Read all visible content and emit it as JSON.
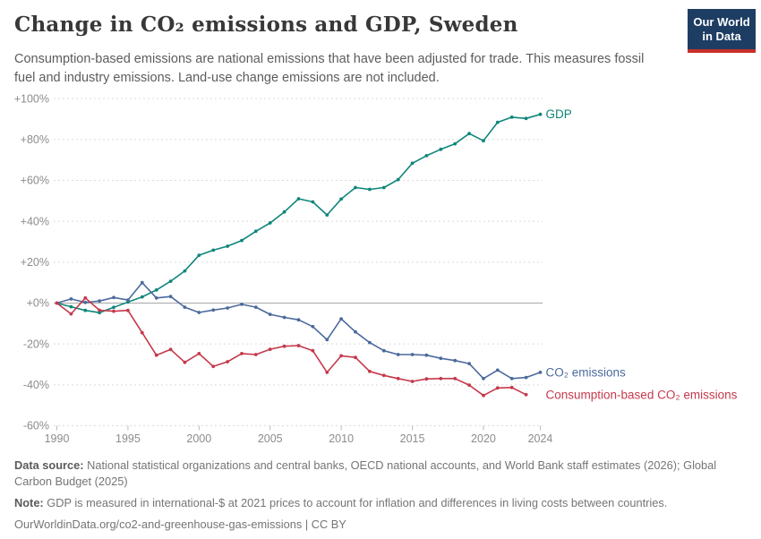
{
  "header": {
    "title": "Change in CO₂ emissions and GDP, Sweden",
    "logo": {
      "line1": "Our World",
      "line2": "in Data"
    }
  },
  "subtitle": "Consumption-based emissions are national emissions that have been adjusted for trade. This measures fossil fuel and industry emissions. Land-use change emissions are not included.",
  "colors": {
    "gdp": "#0F867B",
    "co2": "#4C6A9C",
    "consumption_co2": "#C5394B",
    "gridline": "#DBDBDB",
    "zero_line": "#A8A8A8",
    "tick_text": "#8C8C8C",
    "logo_navy": "#1D3D63",
    "logo_red": "#C7302B"
  },
  "chart_data": {
    "type": "line",
    "title": "Change in CO₂ emissions and GDP, Sweden",
    "x_start": 1990,
    "x_end": 2024,
    "xticks": [
      1990,
      1995,
      2000,
      2005,
      2010,
      2015,
      2020,
      2024
    ],
    "xtick_labels": [
      "1990",
      "1995",
      "2000",
      "2005",
      "2010",
      "2015",
      "2020",
      "2024"
    ],
    "ylim": [
      -60,
      100
    ],
    "yticks": [
      100,
      80,
      60,
      40,
      20,
      0,
      -20,
      -40,
      -60
    ],
    "ytick_labels": [
      "+100%",
      "+80%",
      "+60%",
      "+40%",
      "+20%",
      "+0%",
      "-20%",
      "-40%",
      "-60%"
    ],
    "grid": "horizontal dashed gridlines, solid gray zero line, no vertical grid",
    "legend_position": "labels at right end of each line",
    "unit": "% change since 1990",
    "series": [
      {
        "name": "GDP",
        "color": "#0F867B",
        "start_year": 1990,
        "values": [
          0,
          -1.8,
          -3.6,
          -4.7,
          -2.1,
          0.5,
          3.0,
          6.4,
          10.7,
          15.7,
          23.4,
          25.9,
          27.8,
          30.6,
          35.1,
          39.2,
          44.6,
          51.0,
          49.5,
          43.1,
          50.9,
          56.5,
          55.6,
          56.5,
          60.4,
          68.4,
          72.1,
          75.2,
          77.9,
          82.9,
          79.4,
          88.4,
          90.9,
          90.3,
          92.3
        ]
      },
      {
        "name": "CO₂ emissions",
        "color": "#4C6A9C",
        "start_year": 1990,
        "values": [
          0,
          2.0,
          0.3,
          1.0,
          2.7,
          1.5,
          10.0,
          2.5,
          3.2,
          -2.0,
          -4.6,
          -3.4,
          -2.4,
          -0.6,
          -2.0,
          -5.5,
          -7.0,
          -8.2,
          -11.5,
          -17.9,
          -7.7,
          -14.1,
          -19.3,
          -23.3,
          -25.2,
          -25.2,
          -25.5,
          -27.0,
          -28.1,
          -29.6,
          -36.9,
          -32.8,
          -36.9,
          -36.4,
          -33.9
        ]
      },
      {
        "name": "Consumption-based CO₂ emissions",
        "color": "#C5394B",
        "start_year": 1990,
        "values": [
          0,
          -5.3,
          2.5,
          -3.5,
          -4.0,
          -3.6,
          -14.5,
          -25.5,
          -22.7,
          -29.0,
          -24.7,
          -31.0,
          -28.7,
          -24.7,
          -25.2,
          -22.6,
          -21.1,
          -20.8,
          -23.3,
          -33.9,
          -25.8,
          -26.6,
          -33.4,
          -35.4,
          -36.9,
          -38.3,
          -37.1,
          -36.9,
          -36.9,
          -40.1,
          -45.2,
          -41.5,
          -41.3,
          -44.8
        ]
      }
    ]
  },
  "footer": {
    "data_source_label": "Data source:",
    "data_source_text": " National statistical organizations and central banks, OECD national accounts, and World Bank staff estimates (2026); Global Carbon Budget (2025)",
    "note_label": "Note:",
    "note_text": " GDP is measured in international-$ at 2021 prices to account for inflation and differences in living costs between countries.",
    "citation_url": "OurWorldinData.org/co2-and-greenhouse-gas-emissions",
    "citation_license": " | CC BY"
  }
}
